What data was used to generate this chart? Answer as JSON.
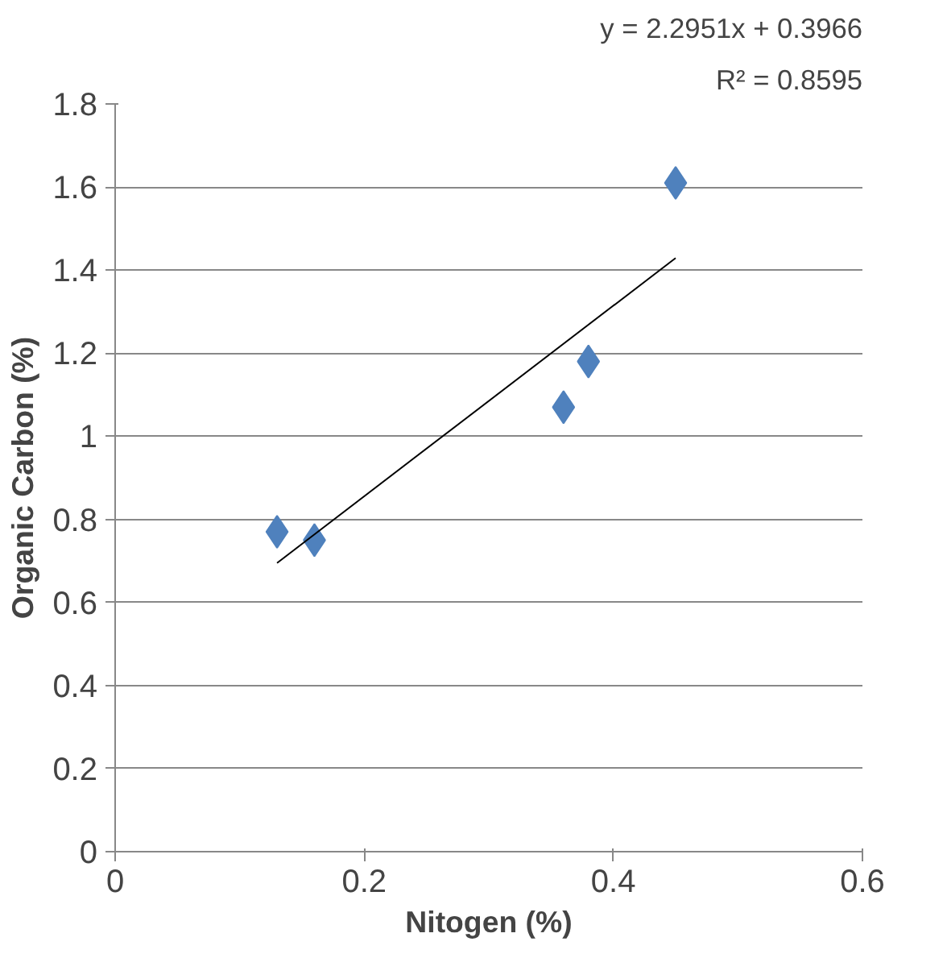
{
  "chart_data": {
    "type": "scatter",
    "xlabel": "Nitogen (%)",
    "ylabel": "Organic Carbon (%)",
    "annotations": [
      "y = 2.2951x + 0.3966",
      "R² = 0.8595"
    ],
    "series": [
      {
        "color": "#4f81bd",
        "marker": "diamond",
        "x": [
          0.13,
          0.16,
          0.36,
          0.38,
          0.45
        ],
        "values": [
          0.77,
          0.75,
          1.07,
          1.18,
          1.61
        ]
      },
      {
        "type": "line",
        "color": "#000000",
        "line_style": "solid",
        "x": [
          0.13,
          0.45
        ],
        "values": [
          0.695,
          1.429
        ]
      }
    ],
    "xlim": [
      0,
      0.6
    ],
    "xticks": [
      0,
      0.2,
      0.4,
      0.6
    ],
    "ylim": [
      0,
      1.8
    ],
    "yticks": [
      0,
      0.2,
      0.4,
      0.6,
      0.8,
      1,
      1.2,
      1.4,
      1.6,
      1.8
    ],
    "grid": "y"
  }
}
